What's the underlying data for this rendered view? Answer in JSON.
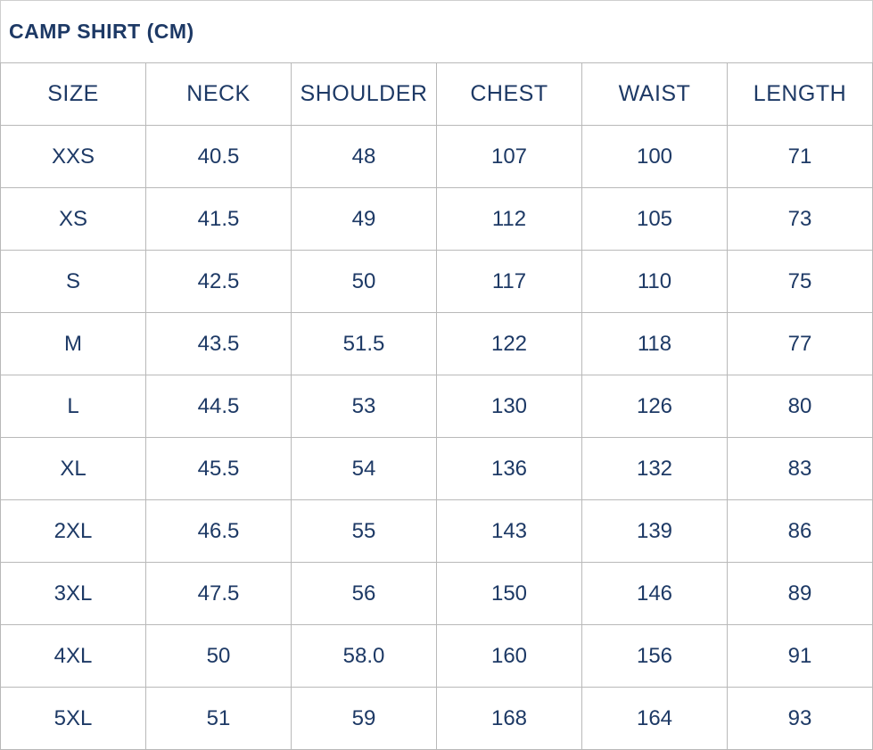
{
  "page": {
    "title": "CAMP SHIRT (CM)"
  },
  "chart_data": {
    "type": "table",
    "title": "CAMP SHIRT (CM)",
    "columns": [
      "SIZE",
      "NECK",
      "SHOULDER",
      "CHEST",
      "WAIST",
      "LENGTH"
    ],
    "rows": [
      [
        "XXS",
        "40.5",
        "48",
        "107",
        "100",
        "71"
      ],
      [
        "XS",
        "41.5",
        "49",
        "112",
        "105",
        "73"
      ],
      [
        "S",
        "42.5",
        "50",
        "117",
        "110",
        "75"
      ],
      [
        "M",
        "43.5",
        "51.5",
        "122",
        "118",
        "77"
      ],
      [
        "L",
        "44.5",
        "53",
        "130",
        "126",
        "80"
      ],
      [
        "XL",
        "45.5",
        "54",
        "136",
        "132",
        "83"
      ],
      [
        "2XL",
        "46.5",
        "55",
        "143",
        "139",
        "86"
      ],
      [
        "3XL",
        "47.5",
        "56",
        "150",
        "146",
        "89"
      ],
      [
        "4XL",
        "50",
        "58.0",
        "160",
        "156",
        "91"
      ],
      [
        "5XL",
        "51",
        "59",
        "168",
        "164",
        "93"
      ]
    ]
  },
  "colors": {
    "text": "#1d3965",
    "border": "#b9b9b9",
    "background": "#ffffff"
  }
}
